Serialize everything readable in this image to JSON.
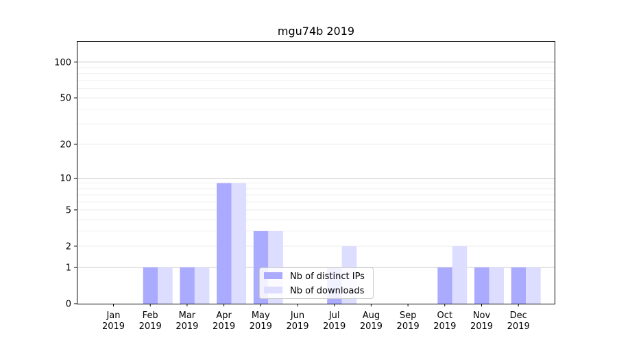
{
  "chart_data": {
    "type": "bar",
    "title": "mgu74b 2019",
    "xlabel": "",
    "ylabel": "",
    "yscale": "symlog",
    "ylim": [
      0,
      150
    ],
    "y_ticks": [
      0,
      1,
      2,
      5,
      10,
      20,
      50,
      100
    ],
    "grid": "horizontal",
    "legend_position": "bottom-center",
    "categories": [
      [
        "Jan",
        "2019"
      ],
      [
        "Feb",
        "2019"
      ],
      [
        "Mar",
        "2019"
      ],
      [
        "Apr",
        "2019"
      ],
      [
        "May",
        "2019"
      ],
      [
        "Jun",
        "2019"
      ],
      [
        "Jul",
        "2019"
      ],
      [
        "Aug",
        "2019"
      ],
      [
        "Sep",
        "2019"
      ],
      [
        "Oct",
        "2019"
      ],
      [
        "Nov",
        "2019"
      ],
      [
        "Dec",
        "2019"
      ]
    ],
    "series": [
      {
        "name": "Nb of distinct IPs",
        "color": "#aaaaff",
        "values": [
          0,
          1,
          1,
          9,
          3,
          0,
          1,
          0,
          0,
          1,
          1,
          1
        ]
      },
      {
        "name": "Nb of downloads",
        "color": "#ddddff",
        "values": [
          0,
          1,
          1,
          9,
          3,
          0,
          2,
          0,
          0,
          2,
          1,
          1
        ]
      }
    ]
  }
}
